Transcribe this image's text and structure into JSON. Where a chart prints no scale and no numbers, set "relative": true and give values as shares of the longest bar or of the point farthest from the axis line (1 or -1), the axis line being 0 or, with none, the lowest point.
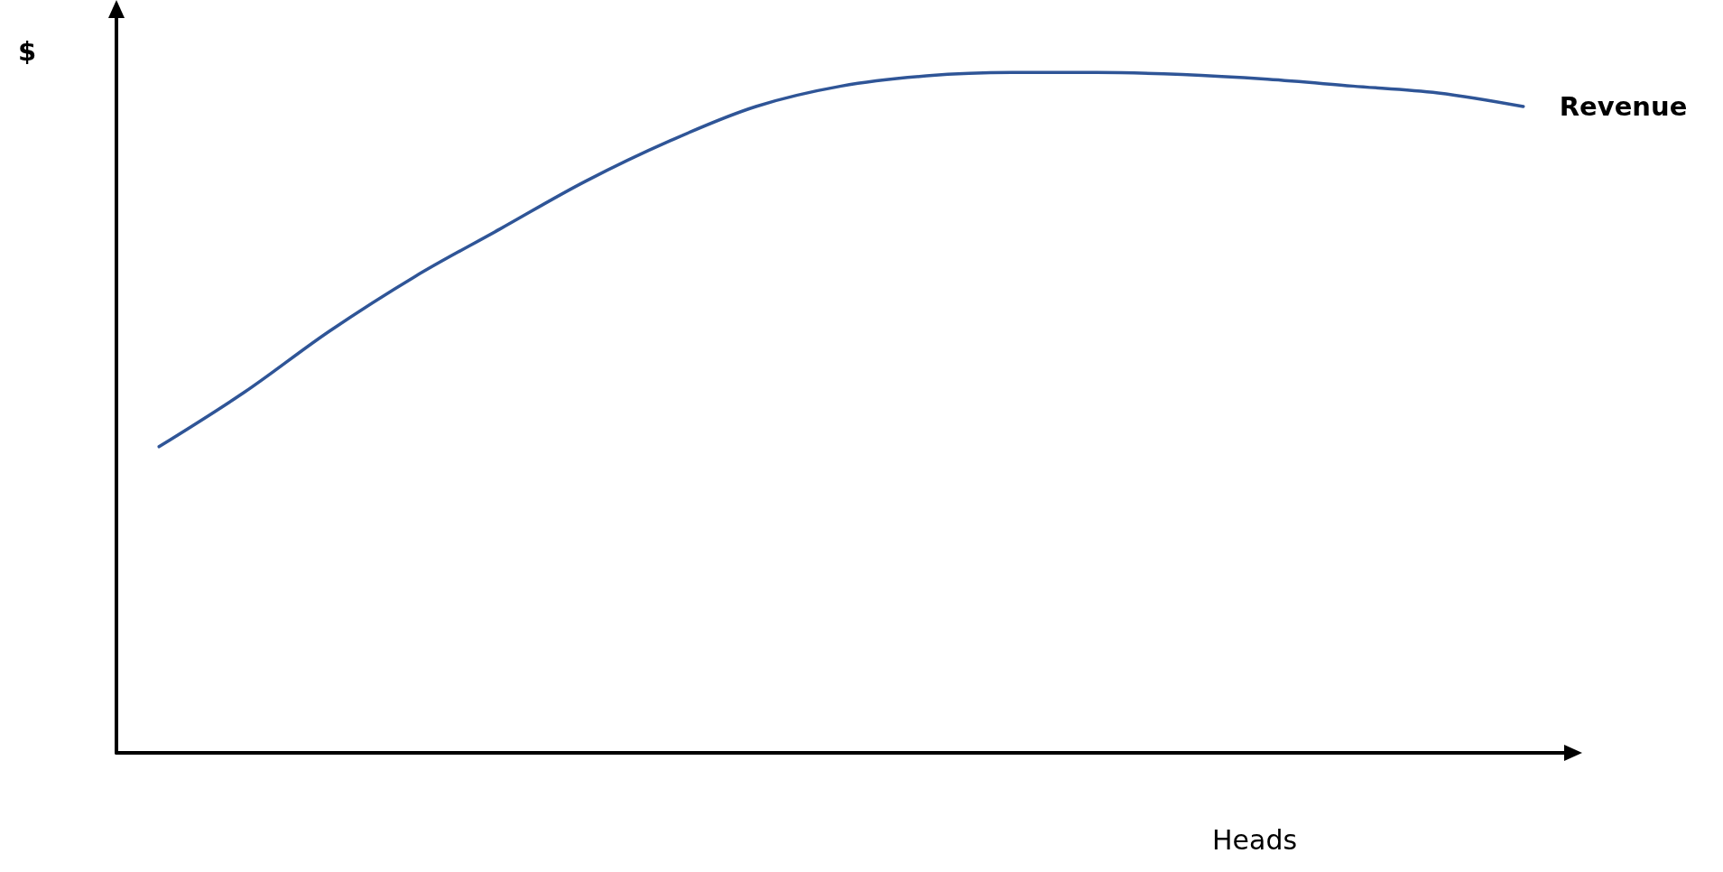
{
  "chart_data": {
    "type": "line",
    "relative": true,
    "xlabel": "Heads",
    "ylabel": "$",
    "categories": [
      null,
      null,
      null,
      null,
      null,
      null,
      null,
      null,
      null,
      null,
      null,
      null,
      null,
      null,
      null,
      null,
      null
    ],
    "series": [
      {
        "name": "Revenue",
        "color": "#2f5597",
        "values": [
          0.45,
          0.53,
          0.62,
          0.7,
          0.77,
          0.84,
          0.9,
          0.95,
          0.98,
          0.995,
          1,
          1,
          0.997,
          0.99,
          0.98,
          0.97,
          0.95
        ]
      }
    ],
    "legend": false,
    "grid": false,
    "marker": "none",
    "line_style": "solid"
  }
}
